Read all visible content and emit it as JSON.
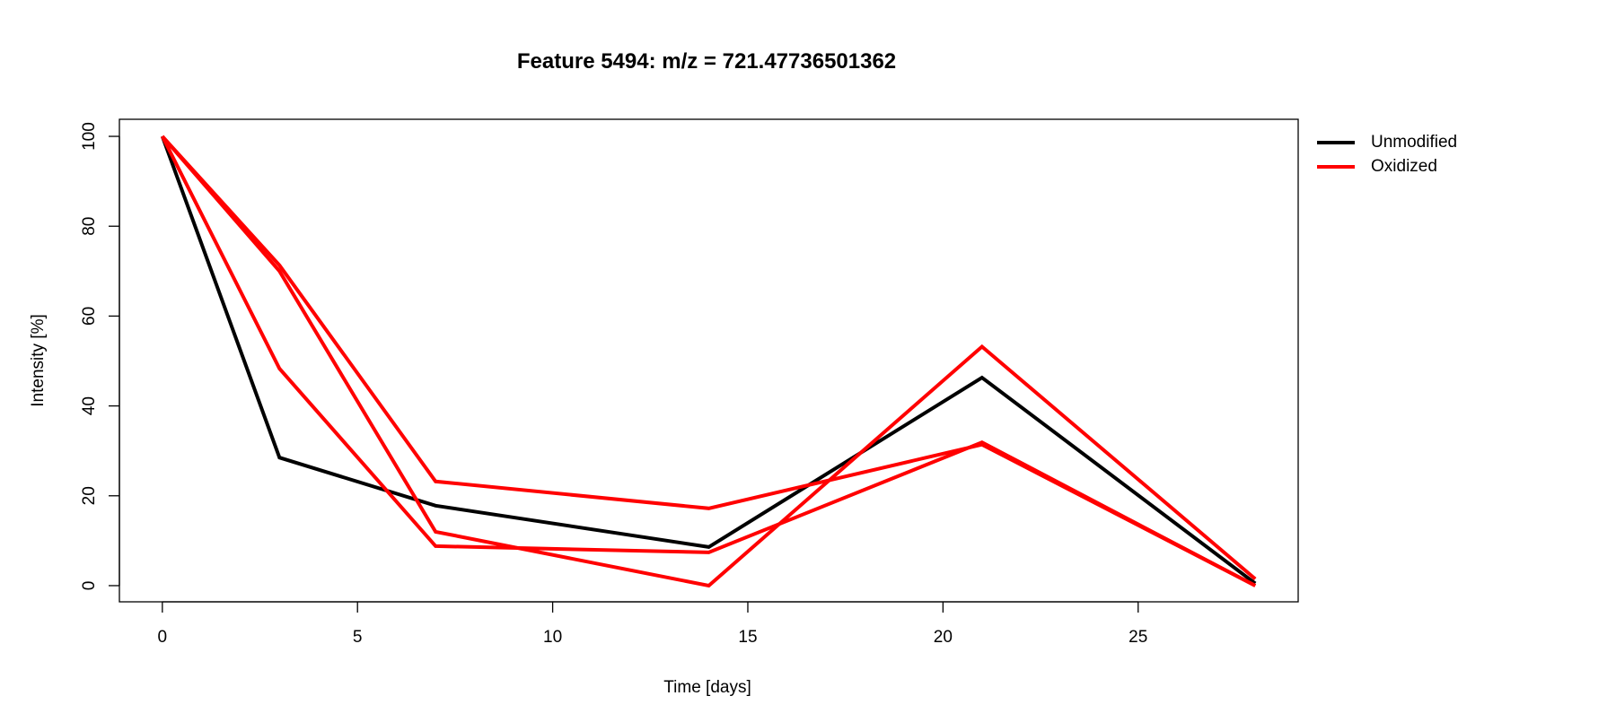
{
  "chart_data": {
    "type": "line",
    "title": "Feature 5494: m/z = 721.47736501362",
    "xlabel": "Time [days]",
    "ylabel": "Intensity [%]",
    "xlim": [
      -1.1,
      29.1
    ],
    "ylim": [
      -3.6,
      103.8
    ],
    "xticks": [
      0,
      5,
      10,
      15,
      20,
      25
    ],
    "yticks": [
      0,
      20,
      40,
      60,
      80,
      100
    ],
    "x": [
      0,
      3,
      7,
      14,
      21,
      28
    ],
    "legend": {
      "placement": "outside-top-right",
      "entries": [
        {
          "label": "Unmodified",
          "color": "#000000"
        },
        {
          "label": "Oxidized",
          "color": "#ff0000"
        }
      ]
    },
    "series": [
      {
        "group": "Unmodified",
        "color": "#000000",
        "values": [
          100,
          28.5,
          17.8,
          8.6,
          46.3,
          0.5
        ]
      },
      {
        "group": "Oxidized",
        "color": "#ff0000",
        "values": [
          100,
          70.0,
          12.0,
          0.0,
          53.2,
          1.5
        ]
      },
      {
        "group": "Oxidized",
        "color": "#ff0000",
        "values": [
          100,
          71.3,
          23.2,
          17.2,
          31.4,
          0.0
        ]
      },
      {
        "group": "Oxidized",
        "color": "#ff0000",
        "values": [
          100,
          48.3,
          8.8,
          7.4,
          31.9,
          0.0
        ]
      }
    ]
  }
}
